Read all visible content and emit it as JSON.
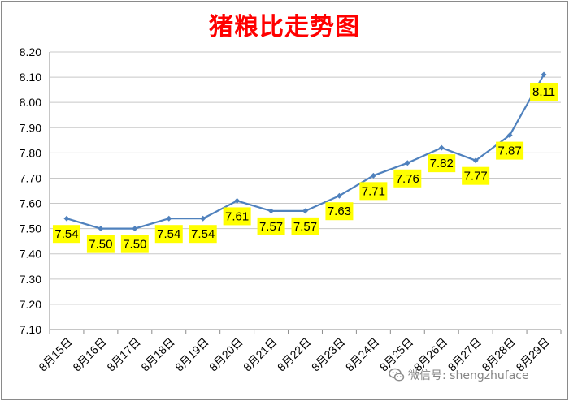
{
  "chart_data": {
    "type": "line",
    "title": "猪粮比走势图",
    "categories": [
      "8月15日",
      "8月16日",
      "8月17日",
      "8月18日",
      "8月19日",
      "8月20日",
      "8月21日",
      "8月22日",
      "8月23日",
      "8月24日",
      "8月25日",
      "8月26日",
      "8月27日",
      "8月28日",
      "8月29日"
    ],
    "values": [
      7.54,
      7.5,
      7.5,
      7.54,
      7.54,
      7.61,
      7.57,
      7.57,
      7.63,
      7.71,
      7.76,
      7.82,
      7.77,
      7.87,
      8.11
    ],
    "data_labels": [
      "7.54",
      "7.50",
      "7.50",
      "7.54",
      "7.54",
      "7.61",
      "7.57",
      "7.57",
      "7.63",
      "7.71",
      "7.76",
      "7.82",
      "7.77",
      "7.87",
      "8.11"
    ],
    "ylim": [
      7.1,
      8.2
    ],
    "yticks": [
      "7.10",
      "7.20",
      "7.30",
      "7.40",
      "7.50",
      "7.60",
      "7.70",
      "7.80",
      "7.90",
      "8.00",
      "8.10",
      "8.20"
    ],
    "grid": true,
    "legend": "none",
    "colors": {
      "line": "#4f81bd",
      "label_bg": "#ffff00",
      "title": "#ff0000",
      "grid": "#c8c8c8"
    }
  },
  "watermark": {
    "text": "微信号: shengzhuface",
    "icon": "wechat-icon"
  }
}
